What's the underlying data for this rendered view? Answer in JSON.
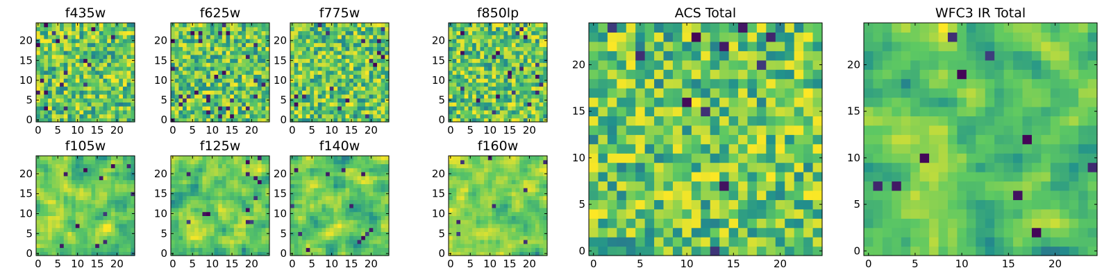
{
  "figure": {
    "colormap": [
      "#440154",
      "#3b528b",
      "#21918c",
      "#5ec962",
      "#fde725"
    ]
  },
  "chart_data": [
    {
      "type": "heatmap",
      "title": "f435w",
      "size": 25,
      "xticks": [
        0,
        5,
        10,
        15,
        20
      ],
      "yticks": [
        0,
        5,
        10,
        15,
        20
      ],
      "seed": 11,
      "smooth": 0,
      "sparse": 0.04
    },
    {
      "type": "heatmap",
      "title": "f625w",
      "size": 25,
      "xticks": [
        0,
        5,
        10,
        15,
        20
      ],
      "yticks": [
        0,
        5,
        10,
        15,
        20
      ],
      "seed": 23,
      "smooth": 0,
      "sparse": 0.04
    },
    {
      "type": "heatmap",
      "title": "f775w",
      "size": 25,
      "xticks": [
        0,
        5,
        10,
        15,
        20
      ],
      "yticks": [
        0,
        5,
        10,
        15,
        20
      ],
      "seed": 37,
      "smooth": 0,
      "sparse": 0.03
    },
    {
      "type": "heatmap",
      "title": "f850lp",
      "size": 25,
      "xticks": [
        0,
        5,
        10,
        15,
        20
      ],
      "yticks": [
        0,
        5,
        10,
        15,
        20
      ],
      "seed": 41,
      "smooth": 0,
      "sparse": 0.03
    },
    {
      "type": "heatmap",
      "title": "f105w",
      "size": 25,
      "xticks": [
        0,
        5,
        10,
        15,
        20
      ],
      "yticks": [
        0,
        5,
        10,
        15,
        20
      ],
      "seed": 53,
      "smooth": 1,
      "sparse": 0.02
    },
    {
      "type": "heatmap",
      "title": "f125w",
      "size": 25,
      "xticks": [
        0,
        5,
        10,
        15,
        20
      ],
      "yticks": [
        0,
        5,
        10,
        15,
        20
      ],
      "seed": 67,
      "smooth": 1,
      "sparse": 0.02
    },
    {
      "type": "heatmap",
      "title": "f140w",
      "size": 25,
      "xticks": [
        0,
        5,
        10,
        15,
        20
      ],
      "yticks": [
        0,
        5,
        10,
        15,
        20
      ],
      "seed": 71,
      "smooth": 1,
      "sparse": 0.02
    },
    {
      "type": "heatmap",
      "title": "f160w",
      "size": 25,
      "xticks": [
        0,
        5,
        10,
        15,
        20
      ],
      "yticks": [
        0,
        5,
        10,
        15,
        20
      ],
      "seed": 83,
      "smooth": 1,
      "sparse": 0.02
    },
    {
      "type": "heatmap",
      "title": "ACS Total",
      "size": 25,
      "xticks": [
        0,
        5,
        10,
        15,
        20
      ],
      "yticks": [
        0,
        5,
        10,
        15,
        20
      ],
      "seed": 97,
      "smooth": 0,
      "sparse": 0.025
    },
    {
      "type": "heatmap",
      "title": "WFC3 IR Total",
      "size": 25,
      "xticks": [
        0,
        5,
        10,
        15,
        20
      ],
      "yticks": [
        0,
        5,
        10,
        15,
        20
      ],
      "seed": 101,
      "smooth": 1,
      "sparse": 0.015
    }
  ]
}
